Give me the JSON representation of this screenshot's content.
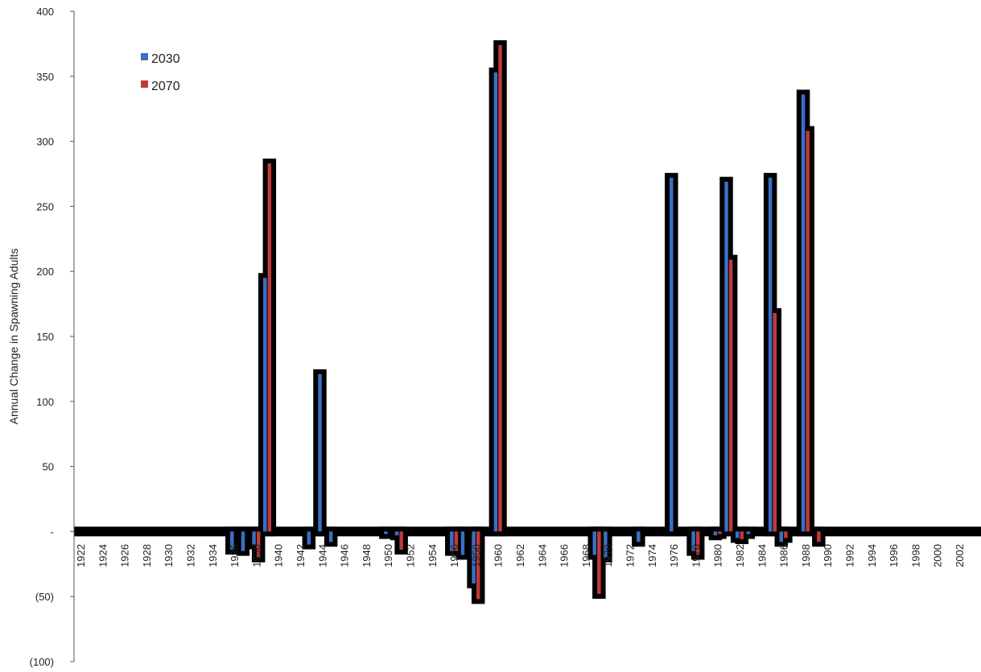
{
  "chart_data": {
    "type": "bar",
    "title": "",
    "ylabel": "Annual Change in Spawning Adults",
    "xlabel": "",
    "ylim": [
      -100,
      400
    ],
    "y_ticks": [
      {
        "value": 400,
        "label": "400"
      },
      {
        "value": 350,
        "label": "350"
      },
      {
        "value": 300,
        "label": "300"
      },
      {
        "value": 250,
        "label": "250"
      },
      {
        "value": 200,
        "label": "200"
      },
      {
        "value": 150,
        "label": "150"
      },
      {
        "value": 100,
        "label": "100"
      },
      {
        "value": 50,
        "label": "50"
      },
      {
        "value": 0,
        "label": "-"
      },
      {
        "value": -50,
        "label": "(50)"
      },
      {
        "value": -100,
        "label": "(100)"
      }
    ],
    "x_tick_labels": [
      "1922",
      "1924",
      "1926",
      "1928",
      "1930",
      "1932",
      "1934",
      "1936",
      "1938",
      "1940",
      "1942",
      "1944",
      "1946",
      "1948",
      "1950",
      "1952",
      "1954",
      "1956",
      "1958",
      "1960",
      "1962",
      "1964",
      "1966",
      "1968",
      "1970",
      "1972",
      "1974",
      "1976",
      "1978",
      "1980",
      "1982",
      "1984",
      "1986",
      "1988",
      "1990",
      "1992",
      "1994",
      "1996",
      "1998",
      "2000",
      "2002"
    ],
    "x_range": [
      1922,
      2003
    ],
    "legend_position": "top-left",
    "series": [
      {
        "name": "2030",
        "color": "#3a6fc4",
        "points": [
          [
            1936,
            -14
          ],
          [
            1937,
            -15
          ],
          [
            1938,
            -10
          ],
          [
            1939,
            195
          ],
          [
            1943,
            -10
          ],
          [
            1944,
            121
          ],
          [
            1945,
            -8
          ],
          [
            1950,
            -2
          ],
          [
            1951,
            -3
          ],
          [
            1956,
            -15
          ],
          [
            1957,
            -18
          ],
          [
            1958,
            -40
          ],
          [
            1960,
            353
          ],
          [
            1969,
            -18
          ],
          [
            1970,
            -20
          ],
          [
            1973,
            -8
          ],
          [
            1976,
            272
          ],
          [
            1978,
            -15
          ],
          [
            1980,
            -3
          ],
          [
            1981,
            269
          ],
          [
            1982,
            -5
          ],
          [
            1983,
            -2
          ],
          [
            1985,
            272
          ],
          [
            1986,
            -8
          ],
          [
            1988,
            336
          ]
        ]
      },
      {
        "name": "2070",
        "color": "#c03a3a",
        "points": [
          [
            1938,
            -20
          ],
          [
            1939,
            283
          ],
          [
            1951,
            -14
          ],
          [
            1956,
            -15
          ],
          [
            1958,
            -52
          ],
          [
            1960,
            374
          ],
          [
            1969,
            -48
          ],
          [
            1978,
            -18
          ],
          [
            1980,
            -2
          ],
          [
            1981,
            209
          ],
          [
            1982,
            -6
          ],
          [
            1985,
            168
          ],
          [
            1986,
            -5
          ],
          [
            1988,
            308
          ],
          [
            1989,
            -8
          ]
        ]
      }
    ]
  }
}
